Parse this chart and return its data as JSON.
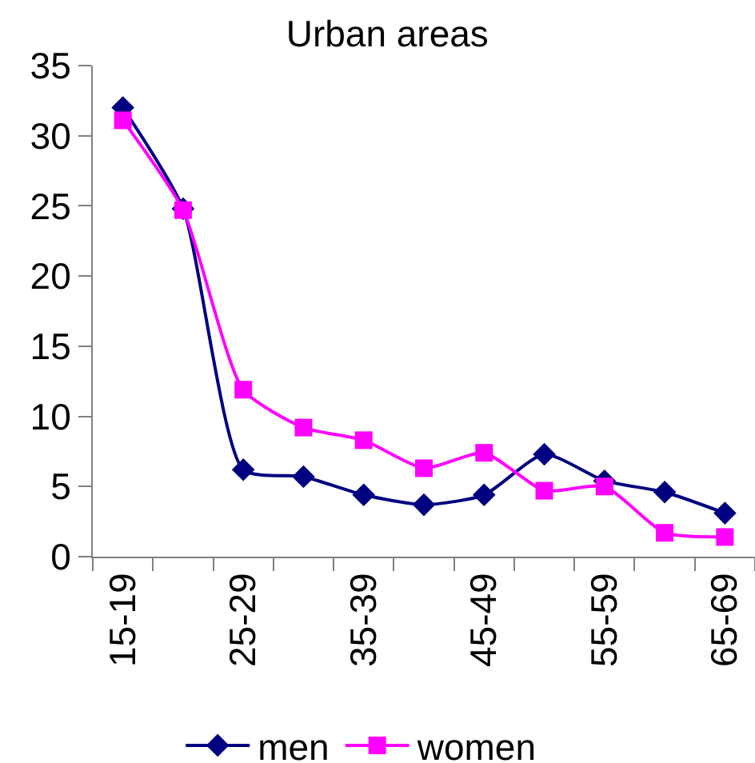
{
  "chart_data": {
    "type": "line",
    "title": "Urban areas",
    "categories": [
      "15-19",
      null,
      "25-29",
      null,
      "35-39",
      null,
      "45-49",
      null,
      "55-59",
      null,
      "65-69"
    ],
    "series": [
      {
        "name": "men",
        "color": "#000080",
        "marker": "diamond",
        "values": [
          32.0,
          24.8,
          6.2,
          5.7,
          4.4,
          3.7,
          4.4,
          7.3,
          5.4,
          4.6,
          3.1
        ]
      },
      {
        "name": "women",
        "color": "#ff00ff",
        "marker": "square",
        "values": [
          31.1,
          24.7,
          11.9,
          9.2,
          8.3,
          6.3,
          7.4,
          4.7,
          5.0,
          1.7,
          1.4
        ]
      }
    ],
    "ylim": [
      0,
      35
    ],
    "yticks": [
      0,
      5,
      10,
      15,
      20,
      25,
      30,
      35
    ],
    "grid": false,
    "legend": "bottom",
    "line_style": "solid"
  }
}
